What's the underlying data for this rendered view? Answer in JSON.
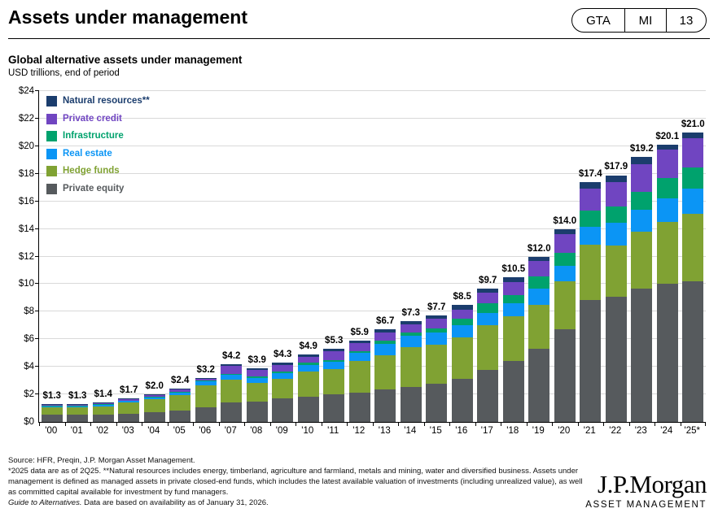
{
  "header": {
    "title": "Assets under management",
    "badge": {
      "items": [
        "GTA",
        "MI",
        "13"
      ]
    }
  },
  "chart": {
    "title": "Global alternative assets under management",
    "subtitle": "USD trillions, end of period"
  },
  "chart_data": {
    "type": "bar",
    "stacked": true,
    "title": "Global alternative assets under management",
    "ylabel": "USD trillions, end of period",
    "xlabel": "",
    "ylim": [
      0,
      24
    ],
    "y_tick_step": 2,
    "y_tick_labels": [
      "$0",
      "$2",
      "$4",
      "$6",
      "$8",
      "$10",
      "$12",
      "$14",
      "$16",
      "$18",
      "$20",
      "$22",
      "$24"
    ],
    "grid": true,
    "legend_position": "top-left-inside",
    "categories": [
      "'00",
      "'01",
      "'02",
      "'03",
      "'04",
      "'05",
      "'06",
      "'07",
      "'08",
      "'09",
      "'10",
      "'11",
      "'12",
      "'13",
      "'14",
      "'15",
      "'16",
      "'17",
      "'18",
      "'19",
      "'20",
      "'21",
      "'22",
      "'23",
      "'24",
      "'25*"
    ],
    "series": [
      {
        "name": "Private equity",
        "color": "#565a5d",
        "values": [
          0.55,
          0.55,
          0.55,
          0.6,
          0.7,
          0.85,
          1.05,
          1.4,
          1.5,
          1.7,
          1.85,
          2.0,
          2.1,
          2.35,
          2.55,
          2.75,
          3.1,
          3.8,
          4.4,
          5.3,
          6.7,
          8.85,
          9.1,
          9.7,
          10.0,
          10.2
        ]
      },
      {
        "name": "Hedge funds",
        "color": "#80a233",
        "values": [
          0.5,
          0.5,
          0.6,
          0.8,
          0.95,
          1.1,
          1.6,
          1.65,
          1.35,
          1.45,
          1.8,
          1.85,
          2.3,
          2.5,
          2.9,
          2.85,
          3.05,
          3.2,
          3.25,
          3.2,
          3.5,
          4.0,
          3.7,
          4.1,
          4.5,
          4.9
        ]
      },
      {
        "name": "Real estate",
        "color": "#0b95f5",
        "values": [
          0.1,
          0.1,
          0.1,
          0.12,
          0.15,
          0.2,
          0.3,
          0.35,
          0.35,
          0.4,
          0.5,
          0.5,
          0.6,
          0.8,
          0.8,
          0.9,
          0.85,
          0.9,
          0.95,
          1.2,
          1.15,
          1.3,
          1.65,
          1.6,
          1.7,
          1.85
        ]
      },
      {
        "name": "Infrastructure",
        "color": "#00a26d",
        "values": [
          0.03,
          0.03,
          0.03,
          0.03,
          0.05,
          0.05,
          0.05,
          0.1,
          0.1,
          0.1,
          0.15,
          0.15,
          0.15,
          0.25,
          0.25,
          0.3,
          0.5,
          0.7,
          0.6,
          0.85,
          0.9,
          1.2,
          1.2,
          1.3,
          1.5,
          1.5
        ]
      },
      {
        "name": "Private credit",
        "color": "#7045c1",
        "values": [
          0.07,
          0.07,
          0.07,
          0.1,
          0.1,
          0.15,
          0.15,
          0.55,
          0.45,
          0.5,
          0.45,
          0.65,
          0.6,
          0.6,
          0.6,
          0.7,
          0.65,
          0.75,
          0.95,
          1.1,
          1.4,
          1.6,
          1.75,
          2.0,
          2.05,
          2.15
        ]
      },
      {
        "name": "Natural resources**",
        "color": "#1b3d6d",
        "values": [
          0.05,
          0.05,
          0.05,
          0.05,
          0.05,
          0.05,
          0.05,
          0.15,
          0.15,
          0.15,
          0.15,
          0.15,
          0.15,
          0.2,
          0.2,
          0.2,
          0.35,
          0.35,
          0.35,
          0.35,
          0.35,
          0.45,
          0.5,
          0.5,
          0.35,
          0.4
        ]
      }
    ],
    "totals": [
      1.3,
      1.3,
      1.4,
      1.7,
      2.0,
      2.4,
      3.2,
      4.2,
      3.9,
      4.3,
      4.9,
      5.3,
      5.9,
      6.7,
      7.3,
      7.7,
      8.5,
      9.7,
      10.5,
      12.0,
      14.0,
      17.4,
      17.9,
      19.2,
      20.1,
      21.0
    ],
    "total_labels": [
      "$1.3",
      "$1.3",
      "$1.4",
      "$1.7",
      "$2.0",
      "$2.4",
      "$3.2",
      "$4.2",
      "$3.9",
      "$4.3",
      "$4.9",
      "$5.3",
      "$5.9",
      "$6.7",
      "$7.3",
      "$7.7",
      "$8.5",
      "$9.7",
      "$10.5",
      "$12.0",
      "$14.0",
      "$17.4",
      "$17.9",
      "$19.2",
      "$20.1",
      "$21.0"
    ]
  },
  "footer": {
    "source": "Source: HFR, Preqin, J.P. Morgan Asset Management.",
    "note": "*2025 data are as of 2Q25. **Natural resources includes energy, timberland, agriculture and farmland, metals and mining, water and diversified business. Assets under management is defined as managed assets in private closed-end funds, which includes the latest available valuation of investments (including unrealized value), as well as committed capital available for investment by fund managers.",
    "guide_italic": "Guide to Alternatives.",
    "guide_rest": " Data are based on availability as of January 31, 2026.",
    "logo": {
      "name": "J.P.Morgan",
      "sub": "ASSET MANAGEMENT"
    }
  },
  "colors": {
    "axis": "#000000",
    "gridline": "#d9d9d9",
    "background": "#ffffff"
  }
}
